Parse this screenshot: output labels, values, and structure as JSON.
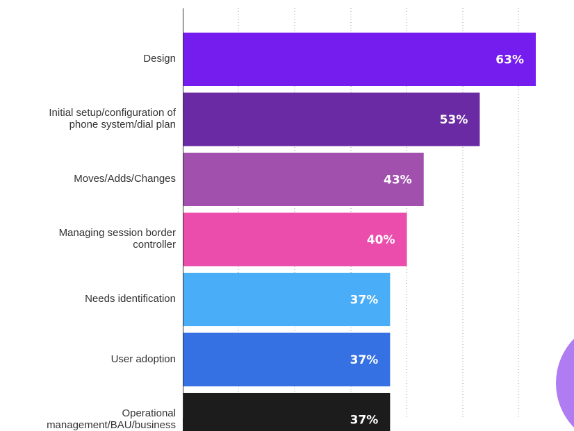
{
  "chart_data": {
    "type": "bar",
    "orientation": "horizontal",
    "categories": [
      "Design",
      "Initial setup/configuration of\nphone system/dial plan",
      "Moves/Adds/Changes",
      "Managing session border\ncontroller",
      "Needs identification",
      "User adoption",
      "Operational\nmanagement/BAU/business"
    ],
    "values": [
      63,
      53,
      43,
      40,
      37,
      37,
      37
    ],
    "value_labels": [
      "63%",
      "53%",
      "43%",
      "40%",
      "37%",
      "37%",
      "37%"
    ],
    "colors": [
      "#751CEF",
      "#6A2AA3",
      "#A150AE",
      "#EB4DAC",
      "#4AADF8",
      "#3571E3",
      "#1C1C1C"
    ],
    "xlim": [
      0,
      63
    ],
    "grid": "vertical-dotted",
    "title": "",
    "xlabel": "",
    "ylabel": ""
  },
  "decoration": {
    "circle_color": "#B07CF2"
  }
}
